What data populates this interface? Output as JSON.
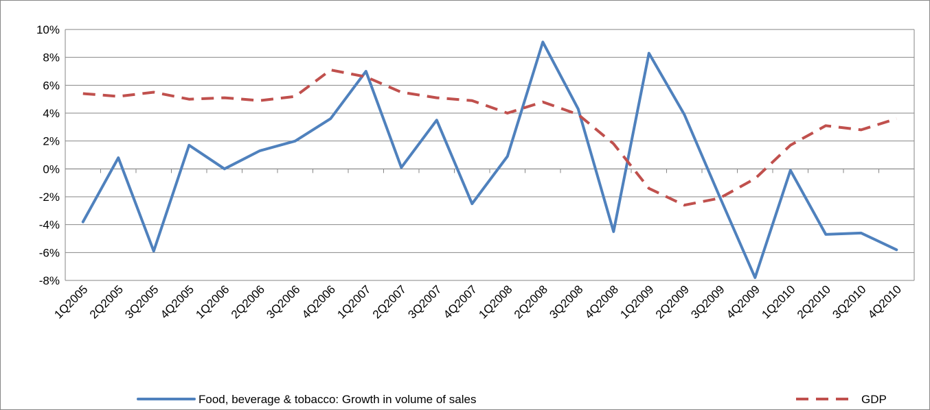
{
  "chart_data": {
    "type": "line",
    "title": "",
    "xlabel": "",
    "ylabel": "",
    "ylim": [
      -8,
      10
    ],
    "ytick_step": 2,
    "y_unit": "%",
    "grid": true,
    "legend_position": "bottom",
    "categories": [
      "1Q2005",
      "2Q2005",
      "3Q2005",
      "4Q2005",
      "1Q2006",
      "2Q2006",
      "3Q2006",
      "4Q2006",
      "1Q2007",
      "2Q2007",
      "3Q2007",
      "4Q2007",
      "1Q2008",
      "2Q2008",
      "3Q2008",
      "4Q2008",
      "1Q2009",
      "2Q2009",
      "3Q2009",
      "4Q2009",
      "1Q2010",
      "2Q2010",
      "3Q2010",
      "4Q2010"
    ],
    "series": [
      {
        "name": "Food, beverage & tobacco: Growth in volume of sales",
        "color": "#4F81BD",
        "style": "solid",
        "values": [
          -3.8,
          0.8,
          -5.9,
          1.7,
          0.0,
          1.3,
          2.0,
          3.6,
          7.0,
          0.1,
          3.5,
          -2.5,
          0.9,
          9.1,
          4.3,
          -4.5,
          8.3,
          3.9,
          -2.0,
          -7.8,
          -0.1,
          -4.7,
          -4.6,
          -5.8
        ]
      },
      {
        "name": "GDP",
        "color": "#C0504D",
        "style": "dashed",
        "values": [
          5.4,
          5.2,
          5.5,
          5.0,
          5.1,
          4.9,
          5.2,
          7.1,
          6.6,
          5.5,
          5.1,
          4.9,
          4.0,
          4.8,
          3.9,
          1.8,
          -1.4,
          -2.6,
          -2.1,
          -0.7,
          1.7,
          3.1,
          2.8,
          3.6
        ]
      }
    ]
  }
}
